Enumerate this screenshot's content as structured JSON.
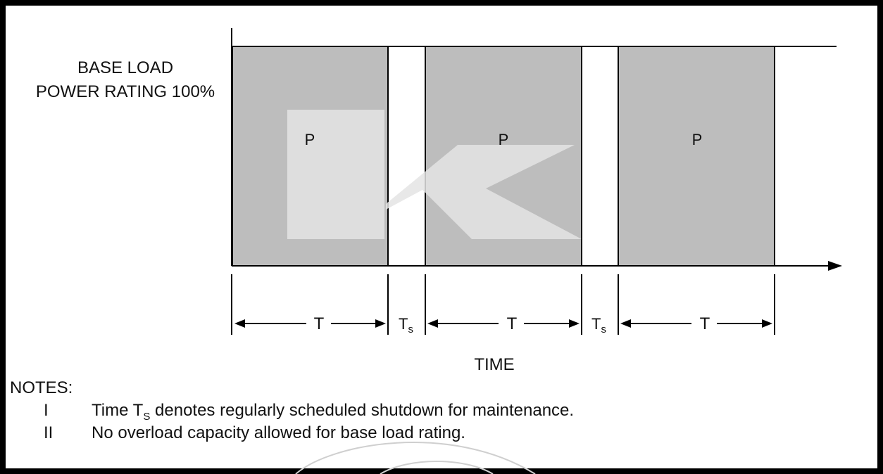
{
  "ylabel_lines": [
    "BASE LOAD",
    "POWER RATING 100%"
  ],
  "block_label": "P",
  "run_label": "T",
  "shutdown_label_main": "T",
  "shutdown_label_sub": "s",
  "xlabel": "TIME",
  "notes": {
    "heading": "NOTES:",
    "items": [
      {
        "num": "I",
        "before": "Time T",
        "sub": "S",
        "after": " denotes regularly scheduled shutdown for maintenance."
      },
      {
        "num": "II",
        "before": "No overload capacity allowed for base load rating.",
        "sub": "",
        "after": ""
      }
    ]
  },
  "colors": {
    "block_fill": "#bdbdbd",
    "line": "#000000",
    "watermark": "#e4e4e4"
  }
}
